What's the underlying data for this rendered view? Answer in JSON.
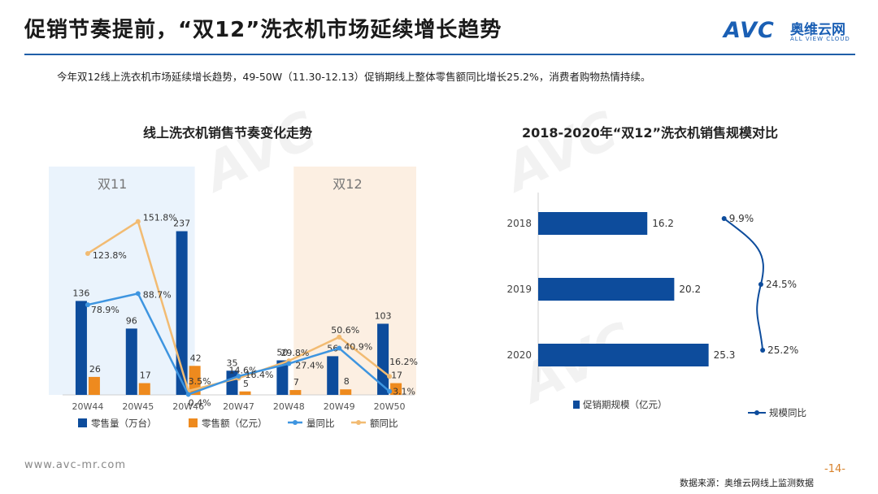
{
  "header": {
    "title": "促销节奏提前，“双12”洗衣机市场延续增长趋势",
    "subtitle": "今年双12线上洗衣机市场延续增长趋势，49-50W（11.30-12.13）促销期线上整体零售额同比增长25.2%，消费者购物热情持续。"
  },
  "logo": {
    "mark": "AVC",
    "cn": "奥维云网",
    "en": "ALL VIEW CLOUD"
  },
  "colors": {
    "accent_blue": "#1f5fa8",
    "bar_volume": "#0d4c9c",
    "bar_amount": "#ee8a1e",
    "line_volume_yoy": "#3e95e0",
    "line_amount_yoy": "#f2bb72",
    "shade_left": "#eaf3fc",
    "shade_right": "#fcefe2",
    "right_bar": "#0d4c9c",
    "right_line": "#0d4c9c"
  },
  "chart_data": [
    {
      "type": "bar",
      "title": "线上洗衣机销售节奏变化走势",
      "categories": [
        "20W44",
        "20W45",
        "20W46",
        "20W47",
        "20W48",
        "20W49",
        "20W50"
      ],
      "series": [
        {
          "name": "零售量（万台）",
          "kind": "bar",
          "values": [
            136,
            96,
            237,
            35,
            50,
            56,
            103
          ],
          "labels": [
            "136",
            "96",
            "237",
            "35",
            "50",
            "56",
            "103"
          ]
        },
        {
          "name": "零售额（亿元）",
          "kind": "bar",
          "values": [
            26,
            17,
            42,
            5,
            7,
            8,
            17
          ],
          "labels": [
            "26",
            "17",
            "42",
            "5",
            "7",
            "8",
            "17"
          ]
        },
        {
          "name": "量同比",
          "kind": "line",
          "values": [
            78.9,
            88.7,
            0.4,
            16.4,
            27.4,
            40.9,
            3.1
          ],
          "labels": [
            "78.9%",
            "88.7%",
            "0.4%",
            "16.4%",
            "27.4%",
            "40.9%",
            "3.1%"
          ]
        },
        {
          "name": "额同比",
          "kind": "line",
          "values": [
            123.8,
            151.8,
            3.5,
            14.6,
            29.8,
            50.6,
            16.2
          ],
          "labels": [
            "123.8%",
            "151.8%",
            "3.5%",
            "14.6%",
            "29.8%",
            "50.6%",
            "16.2%"
          ]
        }
      ],
      "annotations": [
        {
          "text": "双11",
          "span": [
            "20W44",
            "20W46"
          ]
        },
        {
          "text": "双12",
          "span": [
            "20W49",
            "20W50"
          ]
        }
      ],
      "bar_ylim": [
        0,
        260
      ],
      "line_ylim": [
        0,
        175
      ],
      "legend_placement": "bottom"
    },
    {
      "type": "bar",
      "orientation": "horizontal",
      "title": "2018-2020年“双12”洗衣机销售规模对比",
      "categories": [
        "2018",
        "2019",
        "2020"
      ],
      "series": [
        {
          "name": "促销期规模（亿元）",
          "kind": "bar",
          "values": [
            16.2,
            20.2,
            25.3
          ],
          "labels": [
            "16.2",
            "20.2",
            "25.3"
          ]
        },
        {
          "name": "规模同比",
          "kind": "line",
          "values": [
            9.9,
            24.5,
            25.2
          ],
          "labels": [
            "9.9%",
            "24.5%",
            "25.2%"
          ]
        }
      ],
      "xlim": [
        0,
        28
      ],
      "legend_placement": "bottom"
    }
  ],
  "footer": {
    "url": "www.avc-mr.com",
    "page": "-14-",
    "source": "数据来源：奥维云网线上监测数据"
  }
}
